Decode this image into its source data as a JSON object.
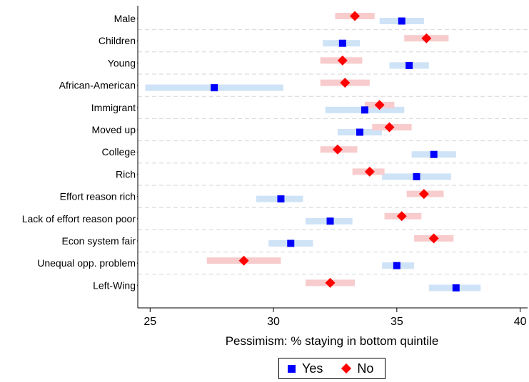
{
  "chart_data": {
    "type": "scatter",
    "xlabel": "Pessimism: % staying in bottom quintile",
    "xlim": [
      24.5,
      40.3
    ],
    "xticks": [
      "25",
      "30",
      "35",
      "40"
    ],
    "categories": [
      "Male",
      "Children",
      "Young",
      "African-American",
      "Immigrant",
      "Moved up",
      "College",
      "Rich",
      "Effort reason rich",
      "Lack of effort reason poor",
      "Econ system fair",
      "Unequal opp. problem",
      "Left-Wing"
    ],
    "series": [
      {
        "name": "Yes",
        "color": "#0000ff",
        "ci_color": "#cfe3f7",
        "marker": "square",
        "values": [
          35.2,
          32.8,
          35.5,
          27.6,
          33.7,
          33.5,
          36.5,
          35.8,
          30.3,
          32.3,
          30.7,
          35.0,
          37.4
        ],
        "ci": [
          [
            34.3,
            36.1
          ],
          [
            32.0,
            33.5
          ],
          [
            34.7,
            36.3
          ],
          [
            24.8,
            30.4
          ],
          [
            32.1,
            35.3
          ],
          [
            32.6,
            34.4
          ],
          [
            35.6,
            37.4
          ],
          [
            34.4,
            37.2
          ],
          [
            29.3,
            31.2
          ],
          [
            31.3,
            33.2
          ],
          [
            29.8,
            31.6
          ],
          [
            34.4,
            35.7
          ],
          [
            36.3,
            38.4
          ]
        ]
      },
      {
        "name": "No",
        "color": "#ff0000",
        "ci_color": "#f8cccc",
        "marker": "diamond",
        "values": [
          33.3,
          36.2,
          32.8,
          32.9,
          34.3,
          34.7,
          32.6,
          33.9,
          36.1,
          35.2,
          36.5,
          28.8,
          32.3
        ],
        "ci": [
          [
            32.5,
            34.1
          ],
          [
            35.3,
            37.1
          ],
          [
            31.9,
            33.6
          ],
          [
            31.9,
            33.9
          ],
          [
            33.7,
            34.9
          ],
          [
            34.0,
            35.6
          ],
          [
            31.9,
            33.4
          ],
          [
            33.2,
            34.5
          ],
          [
            35.4,
            36.9
          ],
          [
            34.5,
            36.0
          ],
          [
            35.7,
            37.3
          ],
          [
            27.3,
            30.3
          ],
          [
            31.3,
            33.3
          ]
        ]
      }
    ],
    "grid": true,
    "legend": {
      "position": "bottom-center",
      "labels": [
        "Yes",
        "No"
      ]
    }
  }
}
